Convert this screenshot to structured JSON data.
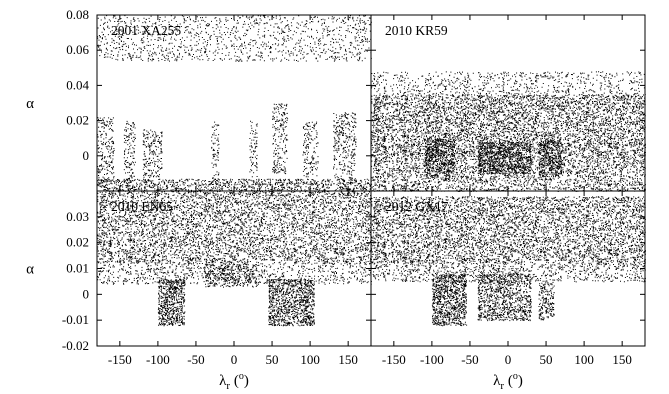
{
  "chart_data": [
    {
      "type": "scatter",
      "title": "2001 XA255",
      "panel": "top-left",
      "xlabel": "",
      "ylabel": "α",
      "xlim": [
        -180,
        180
      ],
      "ylim": [
        -0.02,
        0.08
      ],
      "yticks": [
        -0.02,
        0,
        0.02,
        0.04,
        0.06,
        0.08
      ],
      "yticklabels": [
        "",
        "0",
        "0.02",
        "0.04",
        "0.06",
        "0.08"
      ],
      "xticks": [
        -150,
        -100,
        -50,
        0,
        50,
        100,
        150
      ],
      "xticklabels": [],
      "point_color": "#000000",
      "regions": [
        {
          "lambda": [
            -180,
            180
          ],
          "alpha": [
            -0.02,
            -0.013
          ],
          "density": 0.55
        },
        {
          "lambda": [
            -180,
            180
          ],
          "alpha": [
            0.054,
            0.08
          ],
          "density": 0.18
        },
        {
          "lambda": [
            -180,
            -158
          ],
          "alpha": [
            -0.016,
            0.022
          ],
          "density": 0.35
        },
        {
          "lambda": [
            -145,
            -130
          ],
          "alpha": [
            -0.015,
            0.02
          ],
          "density": 0.35
        },
        {
          "lambda": [
            -120,
            -95
          ],
          "alpha": [
            -0.012,
            0.015
          ],
          "density": 0.4
        },
        {
          "lambda": [
            -30,
            -20
          ],
          "alpha": [
            -0.015,
            0.02
          ],
          "density": 0.3
        },
        {
          "lambda": [
            20,
            30
          ],
          "alpha": [
            -0.012,
            0.02
          ],
          "density": 0.3
        },
        {
          "lambda": [
            50,
            70
          ],
          "alpha": [
            -0.01,
            0.03
          ],
          "density": 0.35
        },
        {
          "lambda": [
            90,
            110
          ],
          "alpha": [
            -0.012,
            0.02
          ],
          "density": 0.3
        },
        {
          "lambda": [
            130,
            160
          ],
          "alpha": [
            -0.014,
            0.025
          ],
          "density": 0.35
        }
      ]
    },
    {
      "type": "scatter",
      "title": "2010 KR59",
      "panel": "top-right",
      "xlabel": "",
      "ylabel": "",
      "xlim": [
        -180,
        180
      ],
      "ylim": [
        -0.02,
        0.08
      ],
      "yticks": [
        -0.02,
        0,
        0.02,
        0.04,
        0.06,
        0.08
      ],
      "yticklabels": [],
      "xticks": [
        -150,
        -100,
        -50,
        0,
        50,
        100,
        150
      ],
      "xticklabels": [],
      "point_color": "#000000",
      "regions": [
        {
          "lambda": [
            -180,
            180
          ],
          "alpha": [
            0.0,
            0.035
          ],
          "density": 0.75
        },
        {
          "lambda": [
            -180,
            180
          ],
          "alpha": [
            0.035,
            0.048
          ],
          "density": 0.2
        },
        {
          "lambda": [
            -180,
            180
          ],
          "alpha": [
            -0.02,
            0.0
          ],
          "density": 0.45
        },
        {
          "lambda": [
            -110,
            -70
          ],
          "alpha": [
            -0.012,
            0.01
          ],
          "density": 0.85
        },
        {
          "lambda": [
            -40,
            30
          ],
          "alpha": [
            -0.01,
            0.008
          ],
          "density": 0.9
        },
        {
          "lambda": [
            40,
            70
          ],
          "alpha": [
            -0.012,
            0.01
          ],
          "density": 0.8
        }
      ]
    },
    {
      "type": "scatter",
      "title": "2010 EN65",
      "panel": "bottom-left",
      "xlabel": "λr (o)",
      "ylabel": "α",
      "xlim": [
        -180,
        180
      ],
      "ylim": [
        -0.02,
        0.04
      ],
      "yticks": [
        -0.02,
        -0.01,
        0,
        0.01,
        0.02,
        0.03,
        0.04
      ],
      "yticklabels": [
        "-0.02",
        "-0.01",
        "0",
        "0.01",
        "0.02",
        "0.03",
        ""
      ],
      "xticks": [
        -150,
        -100,
        -50,
        0,
        50,
        100,
        150
      ],
      "xticklabels": [
        "-150",
        "-100",
        "-50",
        "0",
        "50",
        "100",
        "150"
      ],
      "point_color": "#000000",
      "regions": [
        {
          "lambda": [
            -180,
            180
          ],
          "alpha": [
            0.012,
            0.04
          ],
          "density": 0.45
        },
        {
          "lambda": [
            -180,
            180
          ],
          "alpha": [
            0.004,
            0.012
          ],
          "density": 0.25
        },
        {
          "lambda": [
            -100,
            -65
          ],
          "alpha": [
            -0.012,
            0.006
          ],
          "density": 0.95
        },
        {
          "lambda": [
            45,
            105
          ],
          "alpha": [
            -0.012,
            0.006
          ],
          "density": 0.9
        },
        {
          "lambda": [
            -40,
            30
          ],
          "alpha": [
            0.003,
            0.012
          ],
          "density": 0.5
        }
      ]
    },
    {
      "type": "scatter",
      "title": "2012 GX17",
      "panel": "bottom-right",
      "xlabel": "λr (o)",
      "ylabel": "",
      "xlim": [
        -180,
        180
      ],
      "ylim": [
        -0.02,
        0.04
      ],
      "yticks": [
        -0.02,
        -0.01,
        0,
        0.01,
        0.02,
        0.03,
        0.04
      ],
      "yticklabels": [],
      "xticks": [
        -150,
        -100,
        -50,
        0,
        50,
        100,
        150
      ],
      "xticklabels": [
        "-150",
        "-100",
        "-50",
        "0",
        "50",
        "100",
        "150"
      ],
      "point_color": "#000000",
      "regions": [
        {
          "lambda": [
            -180,
            180
          ],
          "alpha": [
            0.012,
            0.038
          ],
          "density": 0.5
        },
        {
          "lambda": [
            -180,
            180
          ],
          "alpha": [
            0.005,
            0.012
          ],
          "density": 0.3
        },
        {
          "lambda": [
            -100,
            -55
          ],
          "alpha": [
            -0.012,
            0.008
          ],
          "density": 0.95
        },
        {
          "lambda": [
            -40,
            30
          ],
          "alpha": [
            -0.01,
            0.008
          ],
          "density": 0.7
        },
        {
          "lambda": [
            40,
            60
          ],
          "alpha": [
            -0.01,
            0.006
          ],
          "density": 0.6
        }
      ]
    }
  ]
}
